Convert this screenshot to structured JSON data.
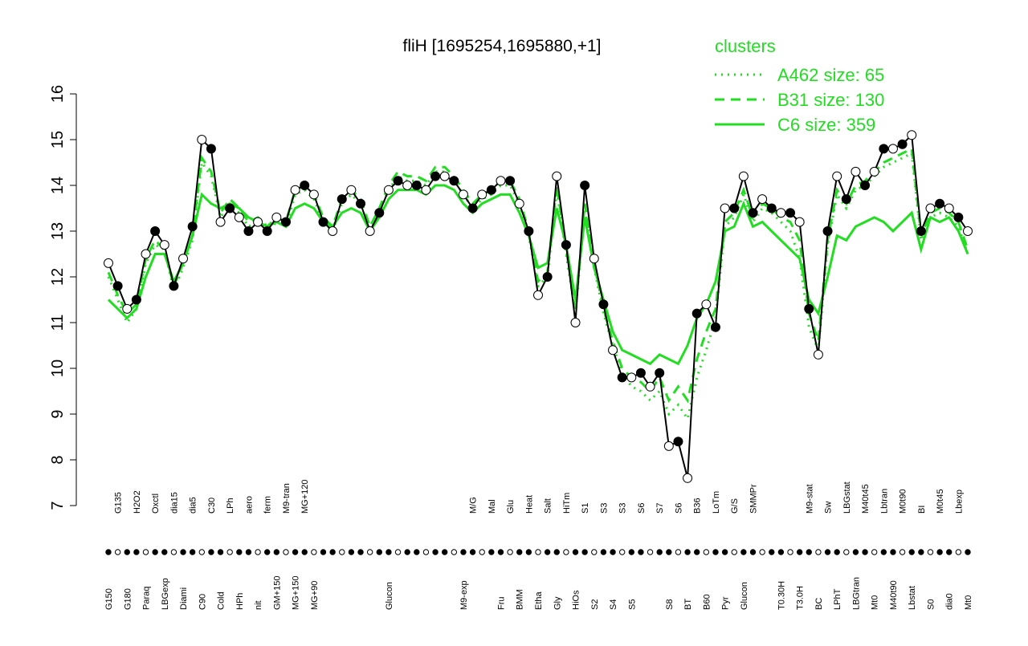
{
  "chart_data": {
    "type": "line",
    "title": "fliH [1695254,1695880,+1]",
    "legend_title": "clusters",
    "legend_position": "top-right",
    "color": "#000000",
    "ylim": [
      7,
      16
    ],
    "yticks": [
      7,
      8,
      9,
      10,
      11,
      12,
      13,
      14,
      15,
      16
    ],
    "categories": [
      "G150",
      "G135",
      "G180",
      "H2O2",
      "Paraq",
      "Oxctl",
      "LBGexp",
      "dia15",
      "Diami",
      "dia5",
      "C90",
      "C30",
      "Cold",
      "LPh",
      "HPh",
      "aero",
      "nit",
      "ferm",
      "GM+150",
      "M9-tran",
      "MG+150",
      "MG+120",
      "MG+90",
      null,
      null,
      null,
      null,
      null,
      null,
      null,
      "Glucon",
      null,
      null,
      null,
      null,
      null,
      null,
      null,
      "M9-exp",
      "M/G",
      null,
      "Mal",
      "Fru",
      "Glu",
      "BMM",
      "Heat",
      "Etha",
      "Salt",
      "Gly",
      "HiTm",
      "HiOs",
      "S1",
      "S2",
      "S3",
      "S4",
      "S3",
      "S5",
      "S6",
      null,
      "S7",
      "S8",
      "S6",
      "BT",
      "B36",
      "B60",
      "LoTm",
      "Pyr",
      "G/S",
      "Glucon",
      "SMMPr",
      null,
      null,
      "T0.30H",
      null,
      "T3.0H",
      "M9-stat",
      "BC",
      "Sw",
      "LPhT",
      "LBGstat",
      "LBGtran",
      "M40t45",
      "Mt0",
      "Lbtran",
      "M40t90",
      "M0t90",
      "Lbstat",
      "BI",
      "S0",
      "M0t45",
      "dia0",
      "Lbexp",
      "Mt0"
    ],
    "values": [
      12.3,
      11.8,
      11.3,
      11.5,
      12.5,
      13.0,
      12.7,
      11.8,
      12.4,
      13.1,
      15.0,
      14.8,
      13.2,
      13.5,
      13.3,
      13.0,
      13.2,
      13.0,
      13.3,
      13.2,
      13.9,
      14.0,
      13.8,
      13.2,
      13.0,
      13.7,
      13.9,
      13.6,
      13.0,
      13.4,
      13.9,
      14.1,
      14.0,
      14.0,
      13.9,
      14.2,
      14.2,
      14.1,
      13.8,
      13.5,
      13.8,
      13.9,
      14.1,
      14.1,
      13.6,
      13.0,
      11.6,
      12.0,
      14.2,
      12.7,
      11.0,
      14.0,
      12.4,
      11.4,
      10.4,
      9.8,
      9.8,
      9.9,
      9.6,
      9.9,
      8.3,
      8.4,
      7.6,
      11.2,
      11.4,
      10.9,
      13.5,
      13.5,
      14.2,
      13.4,
      13.7,
      13.5,
      13.4,
      13.4,
      13.2,
      11.3,
      10.3,
      13.0,
      14.2,
      13.7,
      14.3,
      14.0,
      14.3,
      14.8,
      14.8,
      14.9,
      15.1,
      13.0,
      13.5,
      13.6,
      13.5,
      13.3,
      13.0
    ],
    "series": [
      {
        "name": "A462 size: 65",
        "color": "#22dd22",
        "style": "dotted",
        "values": [
          12.0,
          11.5,
          11.0,
          11.3,
          12.3,
          12.7,
          12.6,
          11.7,
          12.2,
          12.8,
          14.5,
          14.2,
          13.3,
          13.6,
          13.4,
          13.1,
          13.2,
          13.0,
          13.2,
          13.1,
          13.8,
          13.9,
          13.7,
          13.2,
          13.0,
          13.6,
          13.8,
          13.6,
          13.0,
          13.4,
          13.9,
          14.2,
          14.1,
          14.1,
          14.0,
          14.3,
          14.3,
          14.1,
          13.8,
          13.5,
          13.7,
          13.8,
          14.0,
          14.0,
          13.6,
          12.9,
          11.8,
          12.0,
          13.9,
          12.5,
          11.2,
          13.5,
          12.2,
          11.2,
          10.5,
          9.9,
          9.6,
          9.5,
          9.3,
          9.5,
          9.0,
          9.2,
          8.9,
          9.8,
          10.4,
          11.1,
          13.1,
          13.3,
          13.8,
          13.2,
          13.5,
          13.4,
          13.2,
          13.0,
          12.4,
          10.9,
          10.4,
          12.7,
          13.8,
          13.5,
          13.9,
          14.0,
          14.2,
          14.4,
          14.5,
          14.6,
          14.7,
          12.8,
          13.3,
          13.4,
          13.3,
          13.1,
          12.5
        ]
      },
      {
        "name": "B31 size: 130",
        "color": "#22dd22",
        "style": "dashed",
        "values": [
          12.1,
          11.6,
          11.2,
          11.4,
          12.4,
          12.8,
          12.6,
          11.8,
          12.3,
          12.9,
          14.6,
          14.3,
          13.4,
          13.7,
          13.5,
          13.2,
          13.3,
          13.1,
          13.3,
          13.2,
          13.9,
          14.0,
          13.8,
          13.3,
          13.1,
          13.7,
          13.9,
          13.7,
          13.1,
          13.5,
          14.0,
          14.3,
          14.2,
          14.2,
          14.1,
          14.4,
          14.4,
          14.2,
          13.9,
          13.6,
          13.8,
          13.9,
          14.1,
          14.1,
          13.7,
          13.0,
          11.9,
          12.1,
          14.0,
          12.6,
          11.3,
          13.6,
          12.3,
          11.3,
          10.6,
          10.0,
          9.8,
          9.7,
          9.5,
          9.8,
          9.3,
          9.6,
          9.3,
          10.2,
          10.8,
          11.3,
          13.2,
          13.4,
          13.9,
          13.3,
          13.6,
          13.5,
          13.3,
          13.2,
          12.8,
          11.2,
          10.6,
          12.8,
          13.9,
          13.6,
          14.0,
          14.1,
          14.3,
          14.5,
          14.6,
          14.7,
          14.8,
          12.9,
          13.4,
          13.5,
          13.4,
          13.2,
          12.6
        ]
      },
      {
        "name": "C6 size: 359",
        "color": "#22dd22",
        "style": "solid",
        "values": [
          11.5,
          11.3,
          11.1,
          11.3,
          12.0,
          12.5,
          12.5,
          11.9,
          12.3,
          12.9,
          13.8,
          13.6,
          13.5,
          13.6,
          13.5,
          13.3,
          13.2,
          13.1,
          13.2,
          13.1,
          13.5,
          13.6,
          13.5,
          13.2,
          13.1,
          13.4,
          13.5,
          13.4,
          13.0,
          13.3,
          13.7,
          13.9,
          13.9,
          13.9,
          13.8,
          14.0,
          14.0,
          13.9,
          13.6,
          13.4,
          13.6,
          13.7,
          13.8,
          13.8,
          13.4,
          12.9,
          12.2,
          12.3,
          13.5,
          12.7,
          11.5,
          13.3,
          12.2,
          11.5,
          10.8,
          10.4,
          10.3,
          10.2,
          10.1,
          10.3,
          10.2,
          10.1,
          10.5,
          11.1,
          11.4,
          11.9,
          13.0,
          13.1,
          13.6,
          13.1,
          13.2,
          13.0,
          12.8,
          12.6,
          12.4,
          11.5,
          11.2,
          12.0,
          12.9,
          12.8,
          13.1,
          13.2,
          13.3,
          13.2,
          13.0,
          13.2,
          13.4,
          12.6,
          13.3,
          13.2,
          13.3,
          13.0,
          12.5
        ]
      }
    ]
  }
}
